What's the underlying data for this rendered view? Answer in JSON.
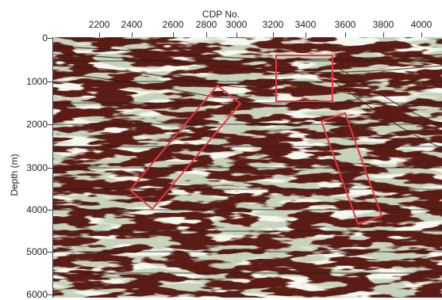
{
  "x_axis": {
    "label": "CDP No.",
    "ticks": [
      "2200",
      "2400",
      "2600",
      "2800",
      "3000",
      "3200",
      "3400",
      "3600",
      "3800",
      "4000"
    ]
  },
  "y_axis": {
    "label": "Depth (m)",
    "ticks": [
      "0",
      "1000",
      "2000",
      "3000",
      "4000",
      "5000",
      "6000"
    ]
  },
  "colors": {
    "trace_dark": "#5b1f14",
    "trace_light": "#e9efe2",
    "background": "#c6d2bc",
    "highlight_box": "#e8383d",
    "horizon_line": "#1a1a1a"
  },
  "highlight_regions": [
    {
      "name": "dipping-reflector-left"
    },
    {
      "name": "shallow-anomaly-top"
    },
    {
      "name": "dipping-reflector-right"
    }
  ]
}
